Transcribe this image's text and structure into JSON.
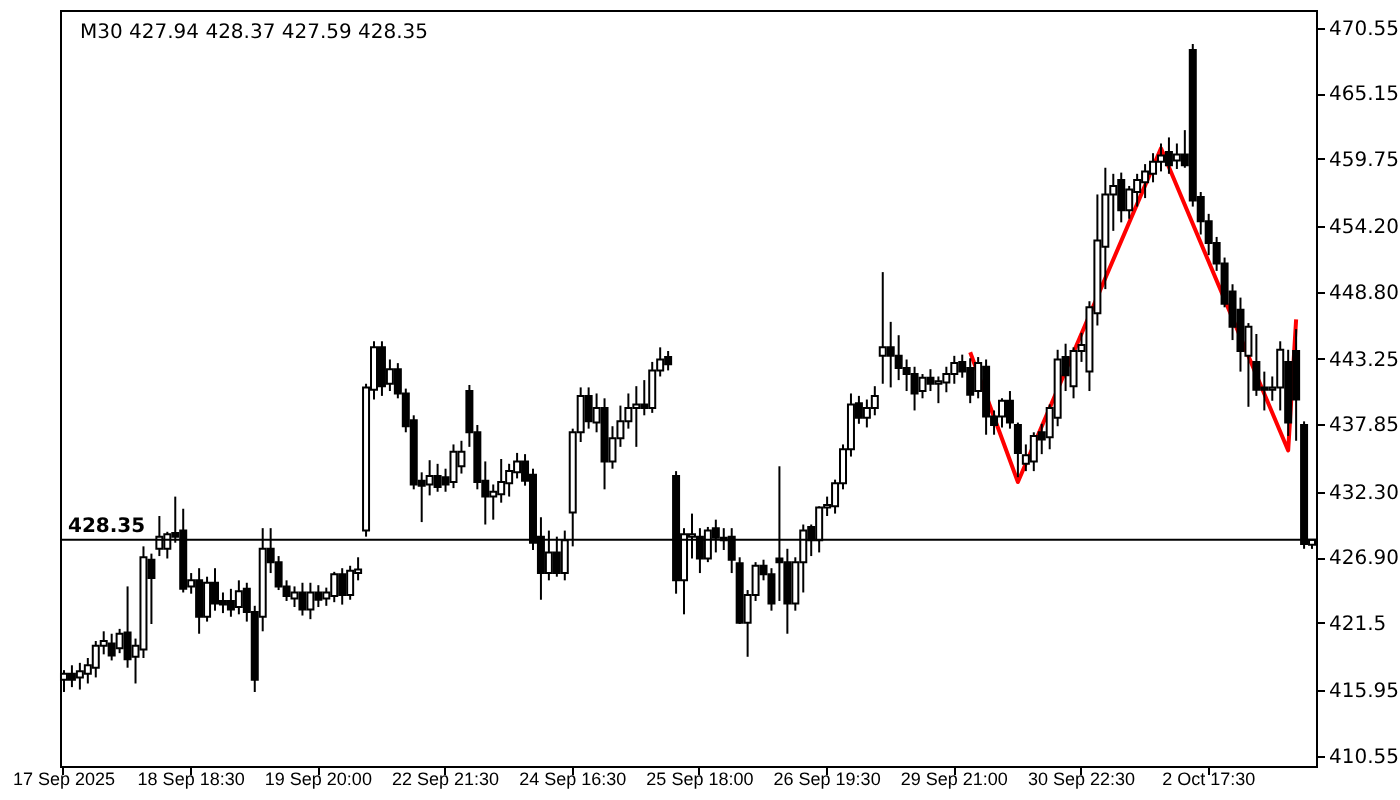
{
  "chart_data": {
    "type": "candlestick",
    "title": "M30  427.94 428.37 427.59 428.35",
    "categories": [
      "17 Sep 2025",
      null,
      null,
      null,
      null,
      null,
      null,
      null,
      null,
      null,
      null,
      null,
      null,
      null,
      null,
      null,
      "18 Sep 18:30",
      null,
      null,
      null,
      null,
      null,
      null,
      null,
      null,
      null,
      null,
      null,
      null,
      null,
      null,
      null,
      "19 Sep 20:00",
      null,
      null,
      null,
      null,
      null,
      null,
      null,
      null,
      null,
      null,
      null,
      null,
      null,
      null,
      null,
      "22 Sep 21:30",
      null,
      null,
      null,
      null,
      null,
      null,
      null,
      null,
      null,
      null,
      null,
      null,
      null,
      null,
      null,
      "24 Sep 16:30",
      null,
      null,
      null,
      null,
      null,
      null,
      null,
      null,
      null,
      null,
      null,
      null,
      null,
      null,
      null,
      "25 Sep 18:00",
      null,
      null,
      null,
      null,
      null,
      null,
      null,
      null,
      null,
      null,
      null,
      null,
      null,
      null,
      null,
      "26 Sep 19:30",
      null,
      null,
      null,
      null,
      null,
      null,
      null,
      null,
      null,
      null,
      null,
      null,
      null,
      null,
      null,
      "29 Sep 21:00",
      null,
      null,
      null,
      null,
      null,
      null,
      null,
      null,
      null,
      null,
      null,
      null,
      null,
      null,
      null,
      "30 Sep 22:30",
      null,
      null,
      null,
      null,
      null,
      null,
      null,
      null,
      null,
      null,
      null,
      null,
      null,
      null,
      null,
      "2 Oct 17:30",
      null,
      null,
      null,
      null,
      null,
      null,
      null,
      null,
      null,
      null,
      null,
      null,
      null
    ],
    "ohlc": [
      [
        416.8,
        417.6,
        415.8,
        417.3
      ],
      [
        417.3,
        418.0,
        416.2,
        416.8
      ],
      [
        417.0,
        418.2,
        416.0,
        417.5
      ],
      [
        417.3,
        418.6,
        416.5,
        418.0
      ],
      [
        417.8,
        420.0,
        417.0,
        419.6
      ],
      [
        419.6,
        420.8,
        418.9,
        420.0
      ],
      [
        419.8,
        420.6,
        418.4,
        418.8
      ],
      [
        419.4,
        421.0,
        419.0,
        420.6
      ],
      [
        420.7,
        424.5,
        417.8,
        418.5
      ],
      [
        418.7,
        420.2,
        416.5,
        419.6
      ],
      [
        419.3,
        427.8,
        418.6,
        426.9
      ],
      [
        426.7,
        427.2,
        421.4,
        425.2
      ],
      [
        427.6,
        430.3,
        427.0,
        428.6
      ],
      [
        427.6,
        429.0,
        426.8,
        428.8
      ],
      [
        428.9,
        431.9,
        428.1,
        428.6
      ],
      [
        429.1,
        430.9,
        424.0,
        424.3
      ],
      [
        424.5,
        425.6,
        423.9,
        425.0
      ],
      [
        425.0,
        426.0,
        420.6,
        422.0
      ],
      [
        422.0,
        425.3,
        421.6,
        424.8
      ],
      [
        424.8,
        426.0,
        422.5,
        423.1
      ],
      [
        423.3,
        424.0,
        422.3,
        423.0
      ],
      [
        423.3,
        424.3,
        422.0,
        422.6
      ],
      [
        422.8,
        425.0,
        422.2,
        424.1
      ],
      [
        424.3,
        424.8,
        421.6,
        422.4
      ],
      [
        422.4,
        422.9,
        415.8,
        416.8
      ],
      [
        422.0,
        429.3,
        420.8,
        427.6
      ],
      [
        427.6,
        429.3,
        425.6,
        426.5
      ],
      [
        426.5,
        427.0,
        424.2,
        424.5
      ],
      [
        424.5,
        425.0,
        423.3,
        423.7
      ],
      [
        423.5,
        424.5,
        422.8,
        424.0
      ],
      [
        424.0,
        424.8,
        422.1,
        422.6
      ],
      [
        422.6,
        424.8,
        421.8,
        424.0
      ],
      [
        424.0,
        424.6,
        422.8,
        423.4
      ],
      [
        423.5,
        424.4,
        422.9,
        424.0
      ],
      [
        423.7,
        425.7,
        423.2,
        425.5
      ],
      [
        425.5,
        426.0,
        423.0,
        423.8
      ],
      [
        423.8,
        426.2,
        423.4,
        425.8
      ],
      [
        425.6,
        426.9,
        425.0,
        425.9
      ],
      [
        429.1,
        441.2,
        428.6,
        440.9
      ],
      [
        440.7,
        444.7,
        439.9,
        444.2
      ],
      [
        444.2,
        444.7,
        440.2,
        441.0
      ],
      [
        441.2,
        443.2,
        440.6,
        442.4
      ],
      [
        442.4,
        442.9,
        440.0,
        440.4
      ],
      [
        440.4,
        440.8,
        437.2,
        437.7
      ],
      [
        438.2,
        438.6,
        432.5,
        432.9
      ],
      [
        433.2,
        433.9,
        429.8,
        432.8
      ],
      [
        432.9,
        434.9,
        432.0,
        433.6
      ],
      [
        433.6,
        434.6,
        432.3,
        432.7
      ],
      [
        433.5,
        434.2,
        432.3,
        432.9
      ],
      [
        433.1,
        436.2,
        432.6,
        435.6
      ],
      [
        434.4,
        436.5,
        433.8,
        435.6
      ],
      [
        440.6,
        441.1,
        436.0,
        437.2
      ],
      [
        437.2,
        437.8,
        432.5,
        433.1
      ],
      [
        433.2,
        434.8,
        429.6,
        431.9
      ],
      [
        431.9,
        432.9,
        430.0,
        432.3
      ],
      [
        432.1,
        435.0,
        431.4,
        433.1
      ],
      [
        433.0,
        434.6,
        431.9,
        434.0
      ],
      [
        433.9,
        435.5,
        433.4,
        434.8
      ],
      [
        434.8,
        435.4,
        432.8,
        433.2
      ],
      [
        433.7,
        434.2,
        427.5,
        428.1
      ],
      [
        428.6,
        430.2,
        423.4,
        425.6
      ],
      [
        425.6,
        429.1,
        425.0,
        427.3
      ],
      [
        427.3,
        428.6,
        425.3,
        425.6
      ],
      [
        425.6,
        429.1,
        425.0,
        428.3
      ],
      [
        430.6,
        437.5,
        427.8,
        437.2
      ],
      [
        437.2,
        440.9,
        436.4,
        440.2
      ],
      [
        440.2,
        440.9,
        437.5,
        438.1
      ],
      [
        438.0,
        440.4,
        437.2,
        439.2
      ],
      [
        439.2,
        440.0,
        432.5,
        434.8
      ],
      [
        434.8,
        437.7,
        434.2,
        436.7
      ],
      [
        436.7,
        439.4,
        436.0,
        438.1
      ],
      [
        438.1,
        440.4,
        437.5,
        439.2
      ],
      [
        439.2,
        441.0,
        436.0,
        439.5
      ],
      [
        439.5,
        441.5,
        438.6,
        439.2
      ],
      [
        439.2,
        443.0,
        438.8,
        442.3
      ],
      [
        442.3,
        444.2,
        441.8,
        443.2
      ],
      [
        443.4,
        443.9,
        442.3,
        442.8
      ],
      [
        433.6,
        434.0,
        423.9,
        425.0
      ],
      [
        425.0,
        429.3,
        422.2,
        428.8
      ],
      [
        428.6,
        430.5,
        426.8,
        428.8
      ],
      [
        428.6,
        429.3,
        425.6,
        426.8
      ],
      [
        426.8,
        429.4,
        426.5,
        429.1
      ],
      [
        429.3,
        430.0,
        427.3,
        428.5
      ],
      [
        428.5,
        429.3,
        427.5,
        428.3
      ],
      [
        428.6,
        429.3,
        425.6,
        426.7
      ],
      [
        426.4,
        426.9,
        421.4,
        421.5
      ],
      [
        421.5,
        424.2,
        418.7,
        423.8
      ],
      [
        423.8,
        426.5,
        423.3,
        426.2
      ],
      [
        426.2,
        426.7,
        425.0,
        425.5
      ],
      [
        425.5,
        426.0,
        422.5,
        423.1
      ],
      [
        426.8,
        434.4,
        423.3,
        426.5
      ],
      [
        426.5,
        427.6,
        420.6,
        423.1
      ],
      [
        423.1,
        426.9,
        422.5,
        426.5
      ],
      [
        426.5,
        429.6,
        424.0,
        429.1
      ],
      [
        429.4,
        429.6,
        427.0,
        428.3
      ],
      [
        428.3,
        431.1,
        427.3,
        431.0
      ],
      [
        431.0,
        431.9,
        430.3,
        431.2
      ],
      [
        431.1,
        433.3,
        430.5,
        433.0
      ],
      [
        433.0,
        436.2,
        432.5,
        435.8
      ],
      [
        435.8,
        440.4,
        435.2,
        439.5
      ],
      [
        439.6,
        440.2,
        437.9,
        438.4
      ],
      [
        438.4,
        439.9,
        437.6,
        439.2
      ],
      [
        439.2,
        441.0,
        438.6,
        440.2
      ],
      [
        443.5,
        450.4,
        441.2,
        444.2
      ],
      [
        444.2,
        446.3,
        440.9,
        443.5
      ],
      [
        443.5,
        445.2,
        441.5,
        442.5
      ],
      [
        442.5,
        443.2,
        440.6,
        442.0
      ],
      [
        442.0,
        442.6,
        439.0,
        440.4
      ],
      [
        440.6,
        442.0,
        440.0,
        441.7
      ],
      [
        441.7,
        442.4,
        440.6,
        441.2
      ],
      [
        441.2,
        441.8,
        439.6,
        441.4
      ],
      [
        441.3,
        442.6,
        440.5,
        442.0
      ],
      [
        442.0,
        443.5,
        441.2,
        442.9
      ],
      [
        443.0,
        443.6,
        441.7,
        442.2
      ],
      [
        442.5,
        443.3,
        439.6,
        440.3
      ],
      [
        440.6,
        443.4,
        440.0,
        442.9
      ],
      [
        442.6,
        443.2,
        437.0,
        438.5
      ],
      [
        438.5,
        439.0,
        437.0,
        437.8
      ],
      [
        438.5,
        440.0,
        437.6,
        439.8
      ],
      [
        439.8,
        440.6,
        437.5,
        438.0
      ],
      [
        437.8,
        438.0,
        433.5,
        435.5
      ],
      [
        434.6,
        436.2,
        434.0,
        435.3
      ],
      [
        434.8,
        437.2,
        434.0,
        436.9
      ],
      [
        437.2,
        437.9,
        435.4,
        436.6
      ],
      [
        436.8,
        439.5,
        435.8,
        439.2
      ],
      [
        438.4,
        444.0,
        437.7,
        443.2
      ],
      [
        443.4,
        444.5,
        440.6,
        441.9
      ],
      [
        441.0,
        444.2,
        440.0,
        443.9
      ],
      [
        443.9,
        445.4,
        443.0,
        444.4
      ],
      [
        442.2,
        448.0,
        440.6,
        447.5
      ],
      [
        447.0,
        456.8,
        446.0,
        453.0
      ],
      [
        452.5,
        459.0,
        449.0,
        456.8
      ],
      [
        456.8,
        458.5,
        453.8,
        457.5
      ],
      [
        458.0,
        458.6,
        454.5,
        455.5
      ],
      [
        455.5,
        457.5,
        454.8,
        457.2
      ],
      [
        457.0,
        458.5,
        455.8,
        458.0
      ],
      [
        457.8,
        459.3,
        456.5,
        458.7
      ],
      [
        458.5,
        460.2,
        457.8,
        459.5
      ],
      [
        459.5,
        461.0,
        458.7,
        460.0
      ],
      [
        460.3,
        461.5,
        458.5,
        459.2
      ],
      [
        459.6,
        461.0,
        458.9,
        460.1
      ],
      [
        460.1,
        462.1,
        459.0,
        459.2
      ],
      [
        468.7,
        469.2,
        455.8,
        456.3
      ],
      [
        456.6,
        457.0,
        453.5,
        454.6
      ],
      [
        454.6,
        455.2,
        451.8,
        452.8
      ],
      [
        452.8,
        453.3,
        450.5,
        451.1
      ],
      [
        451.1,
        451.6,
        447.5,
        447.8
      ],
      [
        448.8,
        449.4,
        444.8,
        445.9
      ],
      [
        447.3,
        448.3,
        442.2,
        443.9
      ],
      [
        443.5,
        446.2,
        439.3,
        445.9
      ],
      [
        443.0,
        445.3,
        440.2,
        440.7
      ],
      [
        440.9,
        442.2,
        439.0,
        440.7
      ],
      [
        440.7,
        441.8,
        439.8,
        440.9
      ],
      [
        440.9,
        444.7,
        439.0,
        444.0
      ],
      [
        443.0,
        444.0,
        436.9,
        438.0
      ],
      [
        443.9,
        445.7,
        436.5,
        439.9
      ],
      [
        437.8,
        438.1,
        427.6,
        428.0
      ],
      [
        427.94,
        428.37,
        427.59,
        428.35
      ]
    ],
    "ylim": [
      409.7,
      472.0
    ],
    "yticks": [
      410.55,
      415.95,
      421.5,
      {
        "value": 426.9,
        "label": "426.90"
      },
      {
        "value": 432.3,
        "label": "432.30"
      },
      437.85,
      443.25,
      {
        "value": 448.8,
        "label": "448.80"
      },
      {
        "value": 454.2,
        "label": "454.20"
      },
      459.75,
      465.15,
      470.55
    ],
    "ref_lines": [
      {
        "axis": "y",
        "value": 428.35,
        "label": "428.35",
        "color": "#000000"
      }
    ],
    "series": [
      {
        "type": "line",
        "color": "#ff0000",
        "values": [
          null,
          null,
          null,
          null,
          null,
          null,
          null,
          null,
          null,
          null,
          null,
          null,
          null,
          null,
          null,
          null,
          null,
          null,
          null,
          null,
          null,
          null,
          null,
          null,
          null,
          null,
          null,
          null,
          null,
          null,
          null,
          null,
          null,
          null,
          null,
          null,
          null,
          null,
          null,
          null,
          null,
          null,
          null,
          null,
          null,
          null,
          null,
          null,
          null,
          null,
          null,
          null,
          null,
          null,
          null,
          null,
          null,
          null,
          null,
          null,
          null,
          null,
          null,
          null,
          null,
          null,
          null,
          null,
          null,
          null,
          null,
          null,
          null,
          null,
          null,
          null,
          null,
          null,
          null,
          null,
          null,
          null,
          null,
          null,
          null,
          null,
          null,
          null,
          null,
          null,
          null,
          null,
          null,
          null,
          null,
          null,
          null,
          null,
          null,
          null,
          null,
          null,
          null,
          null,
          null,
          null,
          null,
          null,
          null,
          null,
          null,
          null,
          null,
          null,
          443.8,
          null,
          null,
          null,
          null,
          null,
          433.1,
          null,
          null,
          null,
          null,
          null,
          null,
          null,
          null,
          null,
          null,
          null,
          null,
          null,
          null,
          null,
          null,
          null,
          460.6,
          null,
          null,
          null,
          null,
          null,
          null,
          null,
          null,
          null,
          null,
          null,
          null,
          null,
          null,
          null,
          435.7,
          446.5,
          null,
          null
        ]
      }
    ]
  }
}
